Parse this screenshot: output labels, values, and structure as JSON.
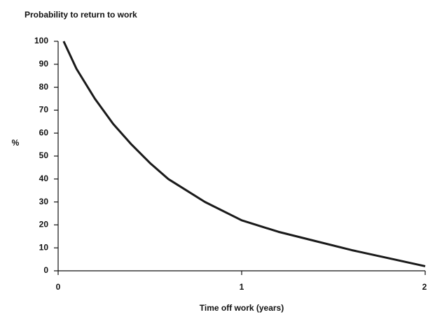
{
  "chart_data": {
    "type": "line",
    "title": "Probability to return to work",
    "x_label": "Time off work (years)",
    "y_label": "%",
    "x": [
      0.03,
      0.1,
      0.2,
      0.3,
      0.4,
      0.5,
      0.6,
      0.8,
      1.0,
      1.2,
      1.4,
      1.6,
      1.8,
      2.0
    ],
    "series": [
      {
        "name": "Probability",
        "color": "#1a1a1a",
        "values": [
          100,
          88,
          75,
          64,
          55,
          47,
          40,
          30,
          22,
          17,
          13,
          9,
          5.5,
          2
        ]
      }
    ],
    "xlim": [
      0,
      2
    ],
    "xticks": [
      0,
      1,
      2
    ],
    "ylim": [
      0,
      100
    ],
    "yticks": [
      0,
      10,
      20,
      30,
      40,
      50,
      60,
      70,
      80,
      90,
      100
    ],
    "grid": false
  }
}
